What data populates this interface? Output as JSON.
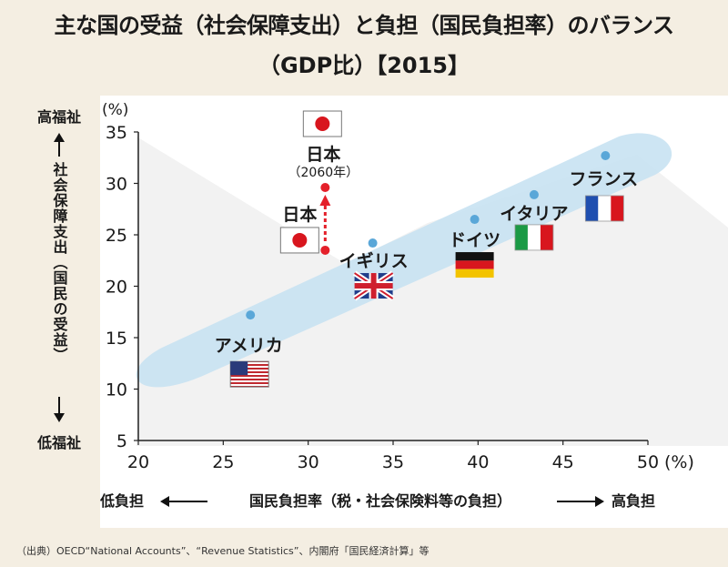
{
  "title_line1": "主な国の受益（社会保障支出）と負担（国民負担率）のバランス",
  "title_line2": "（GDP比）【2015】",
  "source": "（出典）OECD“National Accounts”、“Revenue Statistics”、内閣府「国民経済計算」等",
  "chart_data": {
    "type": "scatter",
    "title": "主な国の受益（社会保障支出）と負担（国民負担率）のバランス（GDP比）【2015】",
    "xlabel": "国民負担率（税・社会保険料等の負担）",
    "xlabel_low": "低負担",
    "xlabel_high": "高負担",
    "x_unit": "(%)",
    "ylabel": "社会保障支出（国民の受益）",
    "ylabel_high": "高福祉",
    "ylabel_low": "低福祉",
    "y_unit": "(%)",
    "xlim": [
      20,
      50
    ],
    "ylim": [
      5,
      35
    ],
    "x_ticks": [
      20,
      25,
      30,
      35,
      40,
      45,
      50
    ],
    "y_ticks": [
      5,
      10,
      15,
      20,
      25,
      30,
      35
    ],
    "grid": false,
    "points": [
      {
        "label": "アメリカ",
        "flag": "usa",
        "x": 26.6,
        "y": 17.2
      },
      {
        "label": "日本",
        "flag": "japan",
        "x": 31.0,
        "y": 23.5
      },
      {
        "label": "イギリス",
        "flag": "uk",
        "x": 33.8,
        "y": 24.2
      },
      {
        "label": "ドイツ",
        "flag": "germany",
        "x": 39.8,
        "y": 26.5
      },
      {
        "label": "イタリア",
        "flag": "italy",
        "x": 43.3,
        "y": 28.9
      },
      {
        "label": "フランス",
        "flag": "france",
        "x": 47.5,
        "y": 32.7
      }
    ],
    "projection": {
      "label": "日本",
      "sublabel": "（2060年）",
      "flag": "japan",
      "x": 31.0,
      "y": 29.6,
      "from_x": 31.0,
      "from_y": 23.5
    },
    "colors": {
      "point": "#5aa7d8",
      "projection": "#e4202a",
      "band": "#c8e2f2",
      "background": "#f4eee2"
    }
  }
}
